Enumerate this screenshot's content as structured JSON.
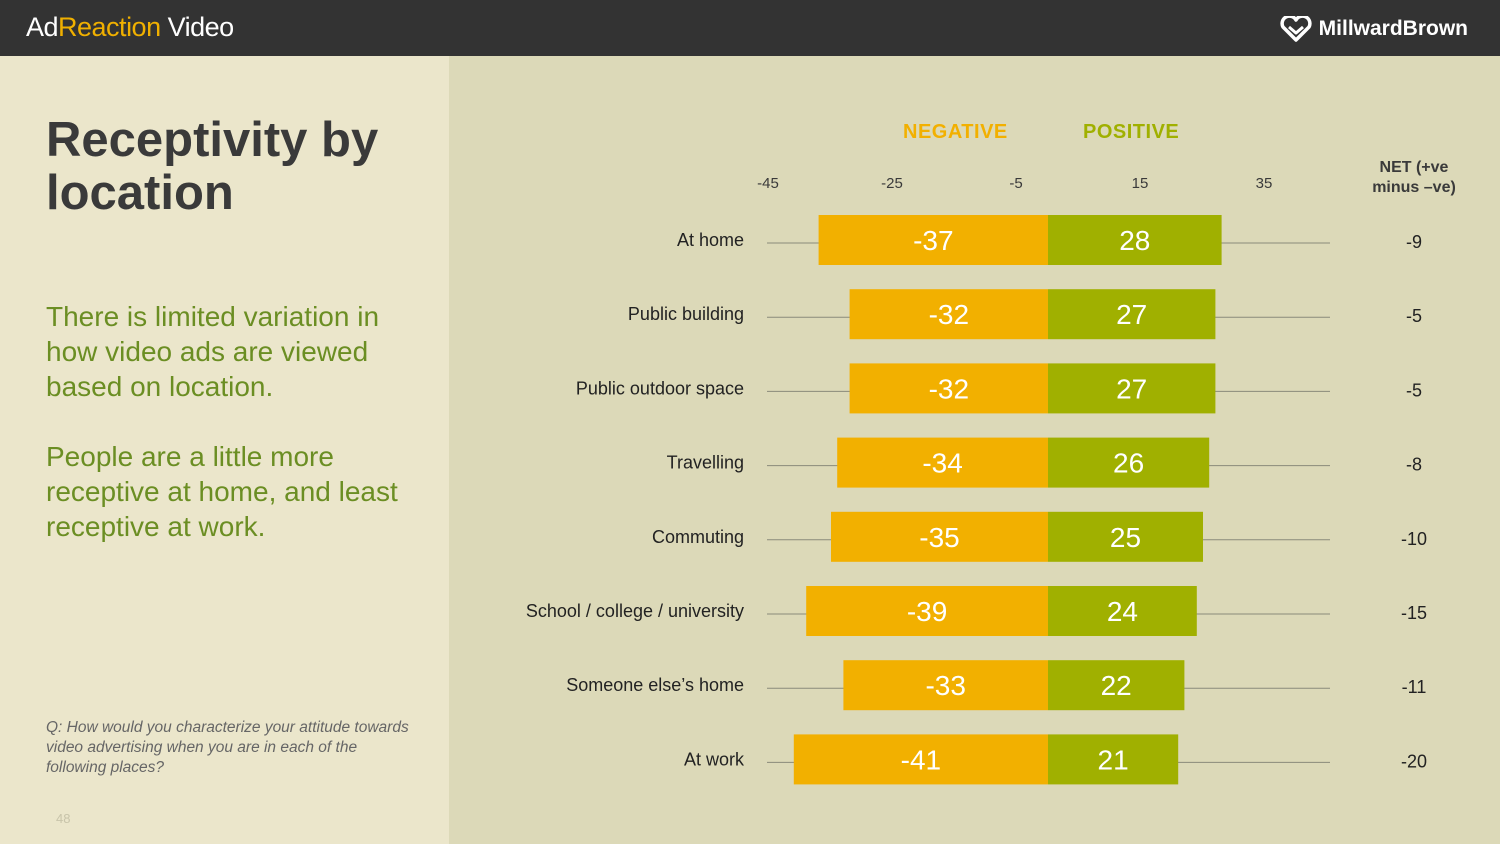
{
  "header": {
    "brand_pre": "Ad",
    "brand_accent": "Reaction",
    "brand_post": " Video",
    "logo_text": "MillwardBrown"
  },
  "left": {
    "title": "Receptivity by location",
    "para1": "There is limited variation in how video ads are viewed based on location.",
    "para2": "People are a little more receptive at home, and least receptive at work.",
    "question": "Q: How would you characterize your attitude towards video advertising when you are in each of the following places?",
    "page_number": "48"
  },
  "colors": {
    "negative": "#f2b000",
    "positive": "#a0b000",
    "label": "#222222"
  },
  "chart_data": {
    "type": "bar",
    "orientation": "horizontal-diverging",
    "legend": {
      "negative": "NEGATIVE",
      "positive": "POSITIVE"
    },
    "net_header": [
      "NET (+ve",
      "minus –ve)"
    ],
    "x_ticks": [
      -45,
      -25,
      -5,
      15,
      35
    ],
    "xlim": [
      -45,
      45
    ],
    "categories": [
      "At home",
      "Public building",
      "Public outdoor space",
      "Travelling",
      "Commuting",
      "School / college / university",
      "Someone else’s home",
      "At work"
    ],
    "series": [
      {
        "name": "NEGATIVE",
        "values": [
          -37,
          -32,
          -32,
          -34,
          -35,
          -39,
          -33,
          -41
        ]
      },
      {
        "name": "POSITIVE",
        "values": [
          28,
          27,
          27,
          26,
          25,
          24,
          22,
          21
        ]
      }
    ],
    "net": [
      -9,
      -5,
      -5,
      -8,
      -10,
      -15,
      -11,
      -20
    ]
  }
}
